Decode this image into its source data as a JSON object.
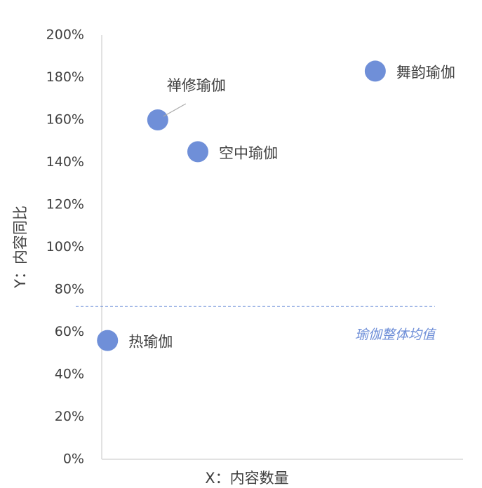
{
  "chart_data": {
    "type": "scatter",
    "x_label": "X：内容数量",
    "y_label": "Y：内容同比",
    "point_labels": [
      "热瑜伽",
      "禅修瑜伽",
      "空中瑜伽",
      "舞韵瑜伽"
    ],
    "x": [
      1.6,
      15.5,
      26.6,
      75.7
    ],
    "values": [
      56,
      160,
      145,
      183
    ],
    "color": "#6f8fd8",
    "xlim": [
      0,
      100
    ],
    "ylim": [
      0,
      200
    ],
    "yticks": [
      {
        "value": 0,
        "label": "0%"
      },
      {
        "value": 20,
        "label": "20%"
      },
      {
        "value": 40,
        "label": "40%"
      },
      {
        "value": 60,
        "label": "60%"
      },
      {
        "value": 80,
        "label": "80%"
      },
      {
        "value": 100,
        "label": "100%"
      },
      {
        "value": 120,
        "label": "120%"
      },
      {
        "value": 140,
        "label": "140%"
      },
      {
        "value": 160,
        "label": "160%"
      },
      {
        "value": 180,
        "label": "180%"
      },
      {
        "value": 200,
        "label": "200%"
      }
    ],
    "average": {
      "value": 72,
      "label": "瑜伽整体均值",
      "color": "#6f8fd8"
    }
  }
}
